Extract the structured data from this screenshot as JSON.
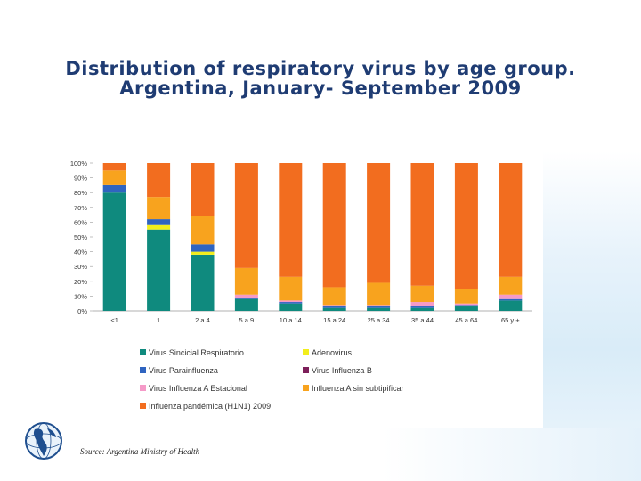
{
  "title": {
    "line1": "Distribution of respiratory virus by age group.",
    "line2": "Argentina, January- September 2009"
  },
  "source": "Source: Argentina Ministry of Health",
  "chart_data": {
    "type": "bar",
    "stacked": true,
    "y_ticks": [
      "0%",
      "10%",
      "20%",
      "30%",
      "40%",
      "50%",
      "60%",
      "70%",
      "80%",
      "90%",
      "100%"
    ],
    "ylim": [
      0,
      100
    ],
    "categories": [
      "<1",
      "1",
      "2 a 4",
      "5 a 9",
      "10 a 14",
      "15 a 24",
      "25 a 34",
      "35 a 44",
      "45 a 64",
      "65 y +"
    ],
    "series": [
      {
        "name": "Virus Sincicial Respiratorio",
        "color": "#0f8a7e",
        "values": [
          80,
          55,
          38,
          8,
          5,
          2,
          2,
          2,
          3,
          7
        ]
      },
      {
        "name": "Adenovirus",
        "color": "#f2ee1c",
        "values": [
          0,
          3,
          2,
          0,
          0,
          0,
          0,
          0,
          0,
          0
        ]
      },
      {
        "name": "Virus Parainfluenza",
        "color": "#2f64c0",
        "values": [
          5,
          4,
          5,
          1,
          1,
          1,
          1,
          1,
          1,
          1
        ]
      },
      {
        "name": "Virus Influenza B",
        "color": "#7d1f5a",
        "values": [
          0,
          0,
          0,
          0,
          0,
          0,
          0,
          0,
          0,
          0
        ]
      },
      {
        "name": "Virus Influenza A Estacional",
        "color": "#f59ac8",
        "values": [
          0,
          0,
          0,
          2,
          1,
          1,
          1,
          3,
          1,
          3
        ]
      },
      {
        "name": "Influenza A sin subtipificar",
        "color": "#f8a31e",
        "values": [
          10,
          15,
          19,
          18,
          16,
          12,
          15,
          11,
          10,
          12
        ]
      },
      {
        "name": "Influenza pandémica (H1N1) 2009",
        "color": "#f26d1f",
        "values": [
          5,
          23,
          36,
          71,
          77,
          84,
          81,
          83,
          85,
          77
        ]
      }
    ],
    "legend": [
      {
        "label": "Virus Sincicial Respiratorio",
        "color": "#0f8a7e"
      },
      {
        "label": "Adenovirus",
        "color": "#f2ee1c"
      },
      {
        "label": "Virus Parainfluenza",
        "color": "#2f64c0"
      },
      {
        "label": "Virus Influenza B",
        "color": "#7d1f5a"
      },
      {
        "label": "Virus Influenza A Estacional",
        "color": "#f59ac8"
      },
      {
        "label": "Influenza A sin subtipificar",
        "color": "#f8a31e"
      },
      {
        "label": "Influenza pandémica (H1N1) 2009",
        "color": "#f26d1f"
      }
    ],
    "legend_placement": "bottom"
  }
}
